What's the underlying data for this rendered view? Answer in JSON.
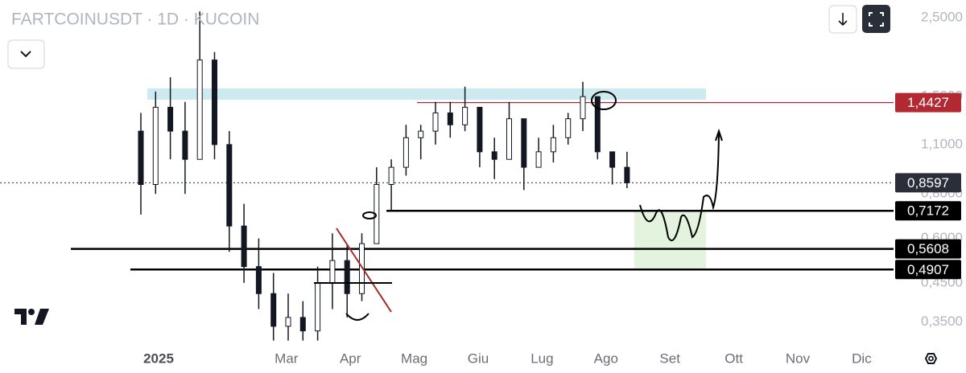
{
  "chart_data": {
    "type": "candlestick",
    "title": "FARTCOINUSDT · 1D · KUCOIN",
    "open": [
      1.2,
      0.85,
      1.4,
      1.2,
      1.0,
      1.9,
      1.1,
      0.65,
      0.5,
      0.42,
      0.34,
      0.36,
      0.33,
      0.45,
      0.52,
      0.42,
      0.58,
      0.85,
      0.95,
      1.15,
      1.2,
      1.35,
      1.25,
      1.4,
      1.05,
      1.0,
      1.3,
      0.95,
      1.05,
      1.15,
      1.3,
      1.5,
      1.05,
      0.95
    ],
    "high": [
      1.35,
      1.55,
      1.7,
      1.45,
      2.6,
      2.0,
      1.2,
      0.75,
      0.6,
      0.48,
      0.42,
      0.4,
      0.5,
      0.62,
      0.58,
      0.62,
      0.95,
      1.0,
      1.25,
      1.25,
      1.45,
      1.45,
      1.6,
      1.4,
      1.15,
      1.45,
      1.3,
      1.15,
      1.25,
      1.35,
      1.65,
      1.5,
      1.05,
      1.05
    ],
    "low": [
      0.7,
      0.8,
      1.0,
      0.8,
      1.0,
      1.0,
      0.55,
      0.45,
      0.38,
      0.31,
      0.31,
      0.31,
      0.31,
      0.38,
      0.36,
      0.4,
      0.58,
      0.72,
      0.9,
      1.0,
      1.1,
      1.15,
      1.2,
      0.95,
      0.88,
      1.0,
      0.82,
      0.95,
      0.98,
      1.1,
      1.2,
      1.0,
      0.85,
      0.83
    ],
    "close": [
      0.85,
      1.4,
      1.2,
      1.0,
      1.9,
      1.1,
      0.65,
      0.5,
      0.42,
      0.34,
      0.36,
      0.33,
      0.45,
      0.52,
      0.42,
      0.58,
      0.85,
      0.95,
      1.15,
      1.2,
      1.35,
      1.25,
      1.4,
      1.05,
      1.0,
      1.3,
      0.95,
      1.05,
      1.15,
      1.3,
      1.5,
      1.05,
      0.95,
      0.8597
    ],
    "color": "#131722",
    "log_scale": true,
    "ylim": [
      0.3,
      2.8
    ],
    "yticks": [
      {
        "value": 2.5,
        "label": "2,5000"
      },
      {
        "value": 1.5,
        "label": "1,5000"
      },
      {
        "value": 1.1,
        "label": "1,1000"
      },
      {
        "value": 0.8,
        "label": "0,8000"
      },
      {
        "value": 0.6,
        "label": "0,6000"
      },
      {
        "value": 0.45,
        "label": "0,4500"
      },
      {
        "value": 0.35,
        "label": "0,3500"
      }
    ],
    "x_labels": [
      "2025",
      null,
      "Mar",
      "Apr",
      "Mag",
      "Giu",
      "Lug",
      "Ago",
      "Set",
      "Ott",
      "Nov",
      "Dic"
    ],
    "price_lines": [
      {
        "value": 1.4427,
        "label": "1,4427",
        "color": "#b22833"
      },
      {
        "value": 0.8597,
        "label": "0,8597",
        "color": "#2a2e39"
      },
      {
        "value": 0.7172,
        "label": "0,7172",
        "color": "#000000"
      },
      {
        "value": 0.5608,
        "label": "0,5608",
        "color": "#000000"
      },
      {
        "value": 0.4907,
        "label": "0,4907",
        "color": "#000000"
      }
    ]
  }
}
